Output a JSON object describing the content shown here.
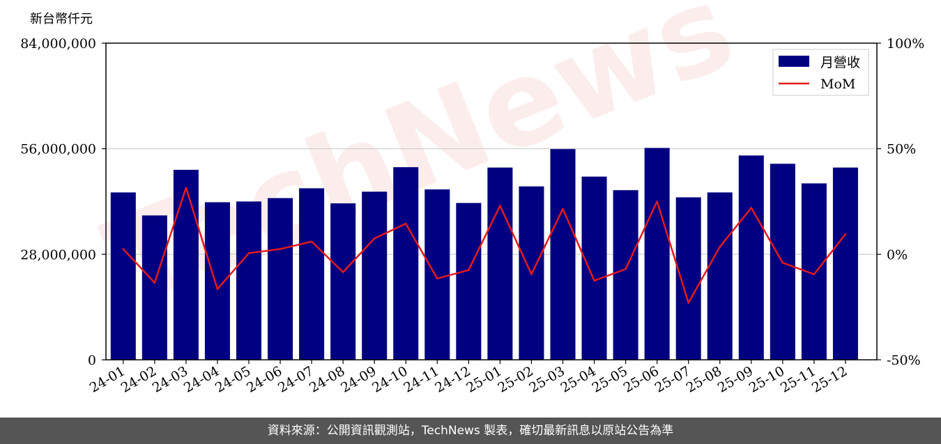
{
  "footer_text": "資料來源：公開資訊觀測站，TechNews 製表，確切最新訊息以原站公告為準",
  "watermark": "TechNews",
  "colors": {
    "bar": "#000080",
    "line": "#e31a1c",
    "grid": "#cccccc",
    "footer_bg": "#555555"
  },
  "chart_data": {
    "type": "bar",
    "title": "",
    "ylabel": "新台幣仟元",
    "categories": [
      "24-01",
      "24-02",
      "24-03",
      "24-04",
      "24-05",
      "24-06",
      "24-07",
      "24-08",
      "24-09",
      "24-10",
      "24-11",
      "24-12",
      "25-01",
      "25-02",
      "25-03",
      "25-04",
      "25-05",
      "25-06",
      "25-07",
      "25-08",
      "25-09",
      "25-10",
      "25-11",
      "25-12"
    ],
    "ylim": [
      0,
      84000000
    ],
    "yticks": [
      0,
      28000000,
      56000000,
      84000000
    ],
    "ytick_labels": [
      "0",
      "28,000,000",
      "56,000,000",
      "84,000,000"
    ],
    "y2lim": [
      -50,
      100
    ],
    "y2ticks": [
      -50,
      0,
      50,
      100
    ],
    "y2tick_labels": [
      "-50%",
      "0%",
      "50%",
      "100%"
    ],
    "grid": true,
    "legend_position": "top-right",
    "series": [
      {
        "name": "月營收",
        "type": "bar",
        "axis": "left",
        "values": [
          44400000,
          38300000,
          50400000,
          41800000,
          42000000,
          42900000,
          45500000,
          41500000,
          44600000,
          51100000,
          45200000,
          41600000,
          51000000,
          46000000,
          55900000,
          48600000,
          45000000,
          56200000,
          43100000,
          44400000,
          54200000,
          52000000,
          46800000,
          51000000
        ]
      },
      {
        "name": "MoM",
        "type": "line",
        "axis": "right",
        "values": [
          2.5,
          -13.5,
          31.5,
          -16.5,
          0.5,
          2.5,
          6.0,
          -8.5,
          7.5,
          14.5,
          -11.5,
          -7.5,
          23.0,
          -9.5,
          21.5,
          -12.5,
          -7.0,
          25.0,
          -23.0,
          3.5,
          22.0,
          -4.0,
          -9.5,
          9.5
        ]
      }
    ]
  }
}
